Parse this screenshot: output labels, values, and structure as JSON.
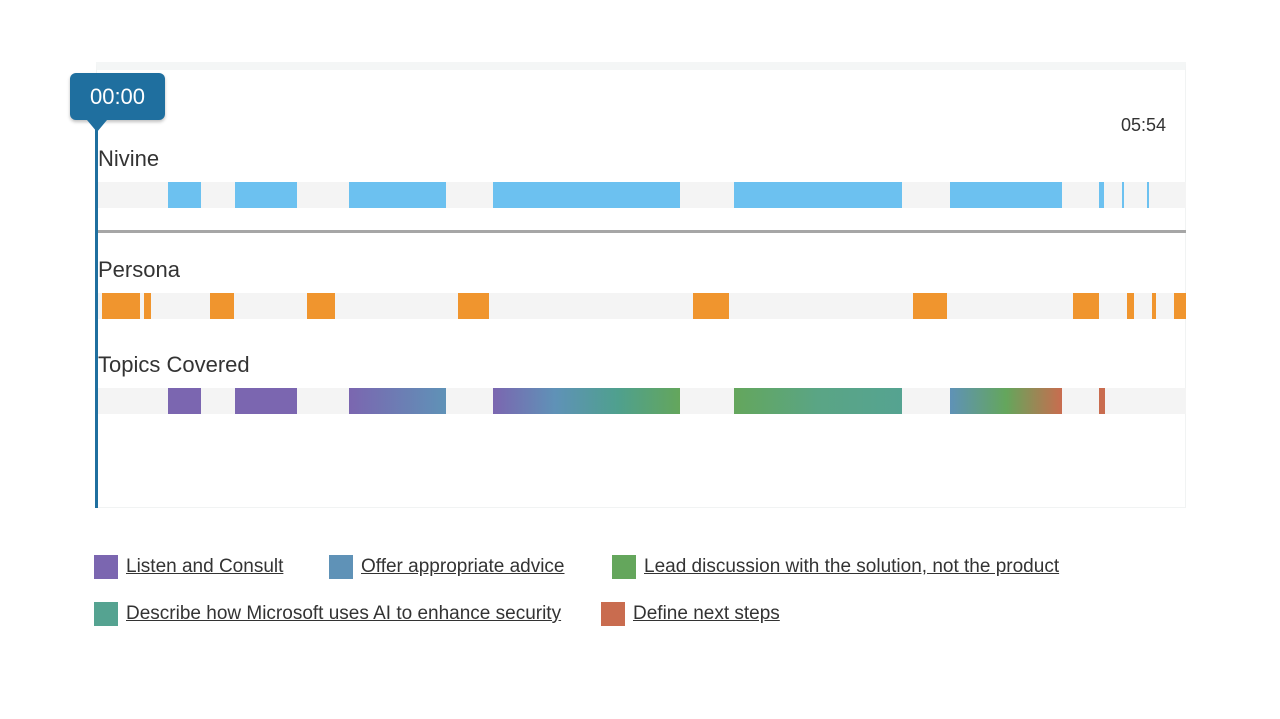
{
  "playhead": {
    "time": "00:00"
  },
  "timeline": {
    "start_time": "00:00",
    "end_time": "05:54",
    "rows": [
      {
        "label": "Nivine",
        "color": "#6cc1f0",
        "segments": [
          [
            6.4,
            9.5
          ],
          [
            12.6,
            18.3
          ],
          [
            23.1,
            32.0
          ],
          [
            36.3,
            53.5
          ],
          [
            58.5,
            73.9
          ],
          [
            78.3,
            88.6
          ],
          [
            92.0,
            92.5
          ],
          [
            94.1,
            94.3
          ],
          [
            96.4,
            96.6
          ]
        ]
      },
      {
        "label": "Persona",
        "color": "#f0952e",
        "segments": [
          [
            0.4,
            3.9
          ],
          [
            4.2,
            4.9
          ],
          [
            10.3,
            12.5
          ],
          [
            19.2,
            21.8
          ],
          [
            33.1,
            35.9
          ],
          [
            54.7,
            58.0
          ],
          [
            74.9,
            78.0
          ],
          [
            89.6,
            92.0
          ],
          [
            94.6,
            95.2
          ],
          [
            96.9,
            97.2
          ],
          [
            98.9,
            100
          ]
        ]
      },
      {
        "label": "Topics Covered",
        "segments": [
          {
            "range": [
              6.4,
              9.5
            ],
            "colors": [
              "#7b66b0"
            ]
          },
          {
            "range": [
              12.6,
              18.3
            ],
            "colors": [
              "#7b66b0"
            ]
          },
          {
            "range": [
              23.1,
              32.0
            ],
            "colors": [
              "#7b66b0",
              "#5f92b7"
            ]
          },
          {
            "range": [
              36.3,
              53.5
            ],
            "colors": [
              "#7b66b0",
              "#5f92b7",
              "#4fa08e",
              "#64a65c"
            ]
          },
          {
            "range": [
              58.5,
              73.9
            ],
            "colors": [
              "#64a65c",
              "#5aa585",
              "#55a391"
            ]
          },
          {
            "range": [
              78.3,
              88.6
            ],
            "colors": [
              "#5f92b7",
              "#64a65c",
              "#c96c4f"
            ]
          },
          {
            "range": [
              92.0,
              92.6
            ],
            "colors": [
              "#c96c4f"
            ]
          }
        ]
      }
    ]
  },
  "legend": [
    {
      "label": "Listen and Consult",
      "color": "#7b66b0"
    },
    {
      "label": "Offer appropriate advice",
      "color": "#5f92b7"
    },
    {
      "label": "Lead discussion with the solution, not the product",
      "color": "#64a65c"
    },
    {
      "label": "Describe how Microsoft uses AI to enhance security",
      "color": "#55a391"
    },
    {
      "label": "Define next steps",
      "color": "#c96c4f"
    }
  ]
}
